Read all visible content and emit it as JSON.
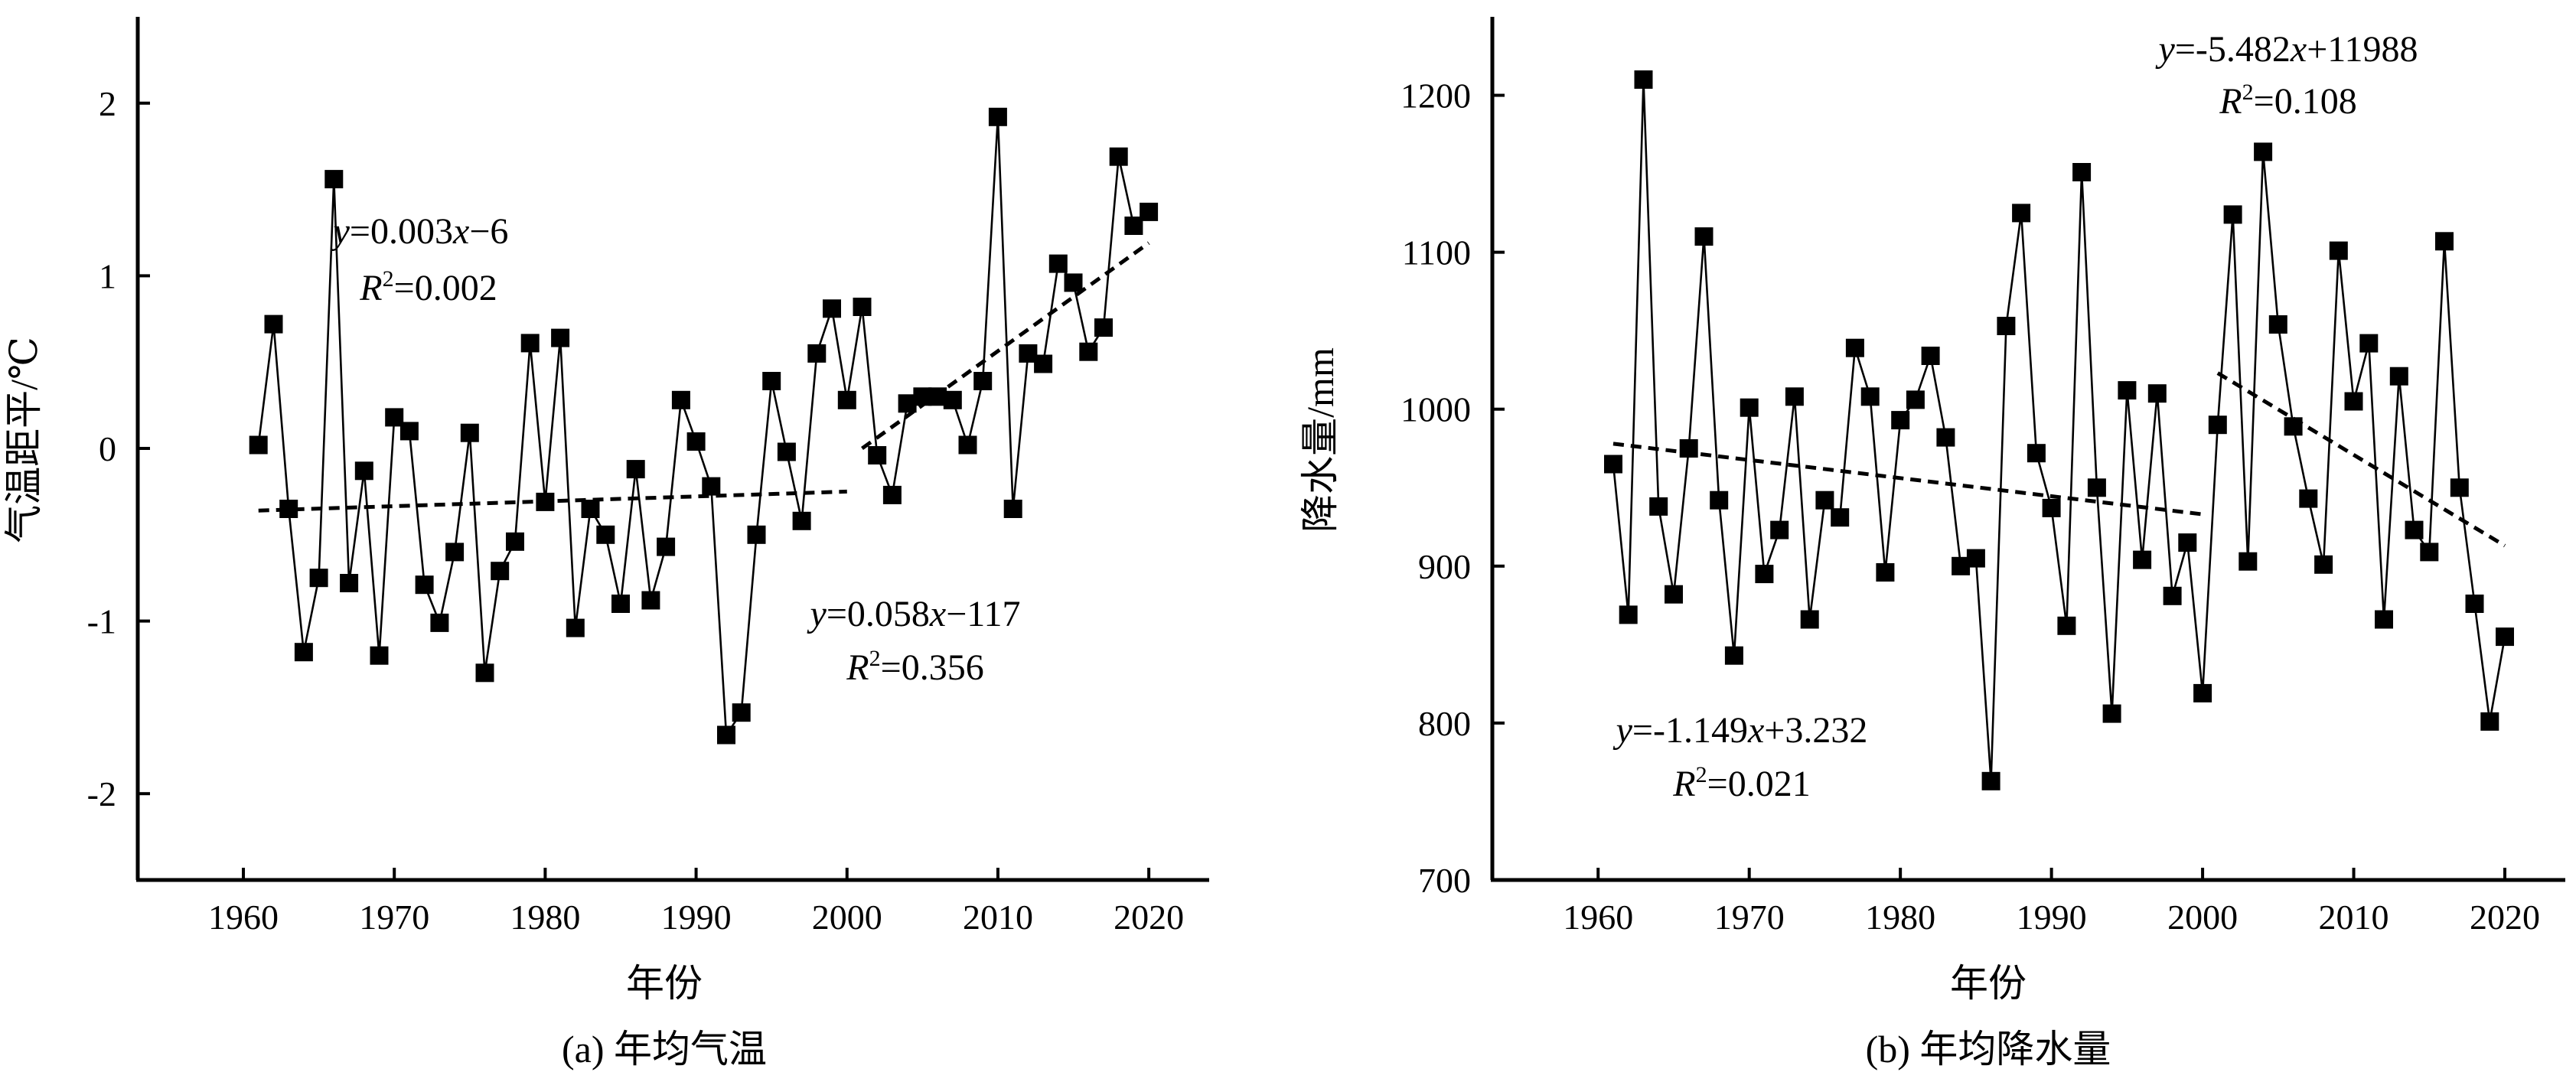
{
  "chart_data": [
    {
      "type": "line",
      "caption": "(a) 年均气温",
      "xlabel": "年份",
      "ylabel": "气温距平/℃",
      "xlim": [
        1953,
        2024
      ],
      "ylim": [
        -2.5,
        2.5
      ],
      "xticks": [
        "1960",
        "1970",
        "1980",
        "1990",
        "2000",
        "2010",
        "2020"
      ],
      "yticks": [
        "-2",
        "-1",
        "0",
        "1",
        "2"
      ],
      "series": [
        {
          "marker": "square",
          "x": [
            1961,
            1962,
            1963,
            1964,
            1965,
            1966,
            1967,
            1968,
            1969,
            1970,
            1971,
            1972,
            1973,
            1974,
            1975,
            1976,
            1977,
            1978,
            1979,
            1980,
            1981,
            1982,
            1983,
            1984,
            1985,
            1986,
            1987,
            1988,
            1989,
            1990,
            1991,
            1992,
            1993,
            1994,
            1995,
            1996,
            1997,
            1998,
            1999,
            2000,
            2001,
            2002,
            2003,
            2004,
            2005,
            2006,
            2007,
            2008,
            2009,
            2010,
            2011,
            2012,
            2013,
            2014,
            2015,
            2016,
            2017,
            2018,
            2019,
            2020
          ],
          "values": [
            0.02,
            0.72,
            -0.35,
            -1.18,
            -0.75,
            1.56,
            -0.78,
            -0.13,
            -1.2,
            0.18,
            0.1,
            -0.79,
            -1.01,
            -0.6,
            0.09,
            -1.3,
            -0.71,
            -0.54,
            0.61,
            -0.31,
            0.64,
            -1.04,
            -0.35,
            -0.5,
            -0.9,
            -0.12,
            -0.88,
            -0.57,
            0.28,
            0.04,
            -0.22,
            -1.66,
            -1.53,
            -0.5,
            0.39,
            -0.02,
            -0.42,
            0.55,
            0.81,
            0.28,
            0.82,
            -0.04,
            -0.27,
            0.26,
            0.3,
            0.3,
            0.28,
            0.02,
            0.39,
            1.92,
            -0.35,
            0.55,
            0.49,
            1.07,
            0.96,
            0.56,
            0.7,
            1.69,
            1.29,
            1.37
          ]
        }
      ],
      "trend_lines": [
        {
          "x": [
            1961,
            2000
          ],
          "y": [
            -0.36,
            -0.25
          ],
          "equation": [
            "y",
            "=0.003",
            "x",
            "−6"
          ],
          "r2": "=0.002"
        },
        {
          "x": [
            2001,
            2020
          ],
          "y": [
            0.0,
            1.19
          ],
          "equation": [
            "y",
            "=0.058",
            "x",
            "−117"
          ],
          "r2": "=0.356"
        }
      ]
    },
    {
      "type": "line",
      "caption": "(b) 年均降水量",
      "xlabel": "年份",
      "ylabel": "降水量/mm",
      "xlim": [
        1953,
        2024
      ],
      "ylim": [
        700,
        1250
      ],
      "xticks": [
        "1960",
        "1970",
        "1980",
        "1990",
        "2000",
        "2010",
        "2020"
      ],
      "yticks": [
        "700",
        "800",
        "900",
        "1000",
        "1100",
        "1200"
      ],
      "series": [
        {
          "marker": "square",
          "x": [
            1961,
            1962,
            1963,
            1964,
            1965,
            1966,
            1967,
            1968,
            1969,
            1970,
            1971,
            1972,
            1973,
            1974,
            1975,
            1976,
            1977,
            1978,
            1979,
            1980,
            1981,
            1982,
            1983,
            1984,
            1985,
            1986,
            1987,
            1988,
            1989,
            1990,
            1991,
            1992,
            1993,
            1994,
            1995,
            1996,
            1997,
            1998,
            1999,
            2000,
            2001,
            2002,
            2003,
            2004,
            2005,
            2006,
            2007,
            2008,
            2009,
            2010,
            2011,
            2012,
            2013,
            2014,
            2015,
            2016,
            2017,
            2018,
            2019,
            2020
          ],
          "values": [
            965,
            869,
            1210,
            938,
            882,
            975,
            1110,
            942,
            843,
            1001,
            895,
            923,
            1008,
            866,
            942,
            931,
            1039,
            1008,
            896,
            993,
            1006,
            1034,
            982,
            900,
            905,
            763,
            1053,
            1125,
            972,
            937,
            862,
            1151,
            950,
            806,
            1012,
            904,
            1010,
            881,
            915,
            819,
            990,
            1124,
            903,
            1164,
            1054,
            989,
            943,
            901,
            1101,
            1005,
            1042,
            866,
            1021,
            923,
            909,
            1107,
            950,
            876,
            801,
            855
          ]
        }
      ],
      "trend_lines": [
        {
          "x": [
            1961,
            2000
          ],
          "y": [
            978,
            933
          ],
          "equation": [
            "y",
            "=-1.149",
            "x",
            "+3.232"
          ],
          "r2": "=0.021"
        },
        {
          "x": [
            2001,
            2020
          ],
          "y": [
            1023,
            913
          ],
          "equation": [
            "y",
            "=-5.482",
            "x",
            "+11988"
          ],
          "r2": "=0.108"
        }
      ]
    }
  ]
}
